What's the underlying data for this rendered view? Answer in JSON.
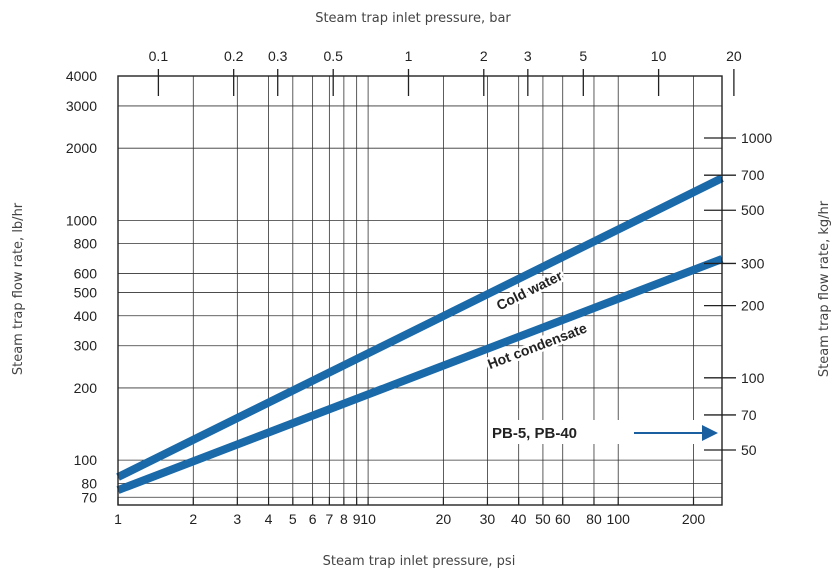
{
  "chart_data": {
    "type": "line",
    "title": "",
    "x_top_label": "Steam trap inlet pressure, bar",
    "x_bottom_label": "Steam trap inlet pressure, psi",
    "y_left_label": "Steam trap flow rate, lb/hr",
    "y_right_label": "Steam trap flow rate, kg/hr",
    "x_scale": "log",
    "y_scale": "log",
    "xlim_psi": [
      1,
      260
    ],
    "ylim_lbhr": [
      65,
      4000
    ],
    "grid": true,
    "bottom_ticks": [
      1,
      2,
      3,
      4,
      5,
      6,
      7,
      8,
      9,
      10,
      20,
      30,
      40,
      50,
      60,
      80,
      100,
      200
    ],
    "bottom_tick_labels": [
      "1",
      "2",
      "3",
      "4",
      "5",
      "6",
      "7",
      "8",
      "9",
      "10",
      "20",
      "30",
      "40",
      "50",
      "60",
      "80",
      "100",
      "200"
    ],
    "top_ticks_bar": [
      0.1,
      0.2,
      0.3,
      0.5,
      1,
      2,
      3,
      5,
      10,
      20
    ],
    "top_tick_labels": [
      "0.1",
      "0.2",
      "0.3",
      "0.5",
      "1",
      "2",
      "3",
      "5",
      "10",
      "20"
    ],
    "left_ticks": [
      70,
      80,
      100,
      200,
      300,
      400,
      500,
      600,
      800,
      1000,
      2000,
      3000,
      4000
    ],
    "left_tick_labels": [
      "70",
      "80",
      "100",
      "200",
      "300",
      "400",
      "500",
      "600",
      "800",
      "1000",
      "2000",
      "3000",
      "4000"
    ],
    "right_ticks_kghr": [
      50,
      70,
      100,
      200,
      300,
      500,
      700,
      1000
    ],
    "right_tick_labels": [
      "50",
      "70",
      "100",
      "200",
      "300",
      "500",
      "700",
      "1000"
    ],
    "series": [
      {
        "name": "Cold water",
        "color": "#1a6aaa",
        "x": [
          1,
          260
        ],
        "y": [
          85,
          1500
        ]
      },
      {
        "name": "Hot condensate",
        "color": "#1a6aaa",
        "x": [
          1,
          260
        ],
        "y": [
          75,
          690
        ]
      }
    ],
    "annotation": {
      "text": "PB-5, PB-40",
      "color": "#1a5fa0"
    }
  }
}
